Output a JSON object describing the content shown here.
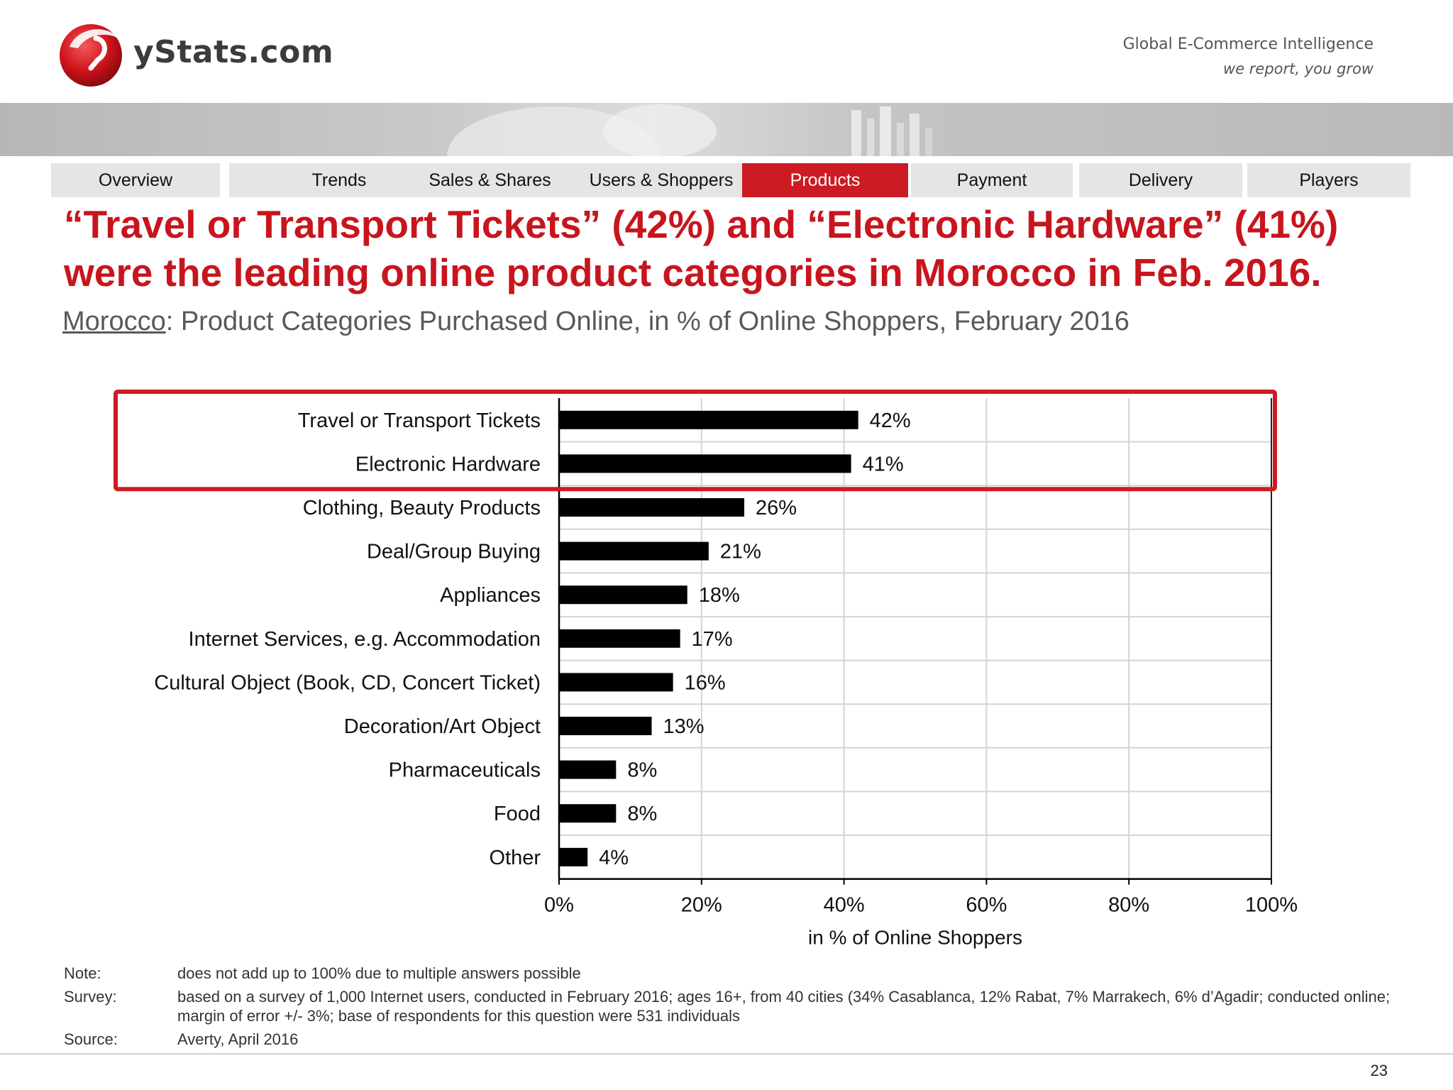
{
  "brand": {
    "logo_text": "yStats.com",
    "tagline_line1": "Global E-Commerce Intelligence",
    "tagline_line2": "we report, you grow",
    "accent_color": "#cc1b22"
  },
  "nav": {
    "tabs": [
      {
        "label": "Overview",
        "active": false
      },
      {
        "label": "Trends",
        "active": false
      },
      {
        "label": "Sales & Shares",
        "active": false
      },
      {
        "label": "Users & Shoppers",
        "active": false
      },
      {
        "label": "Products",
        "active": true
      },
      {
        "label": "Payment",
        "active": false
      },
      {
        "label": "Delivery",
        "active": false
      },
      {
        "label": "Players",
        "active": false
      }
    ]
  },
  "headline": "“Travel or Transport Tickets” (42%) and “Electronic Hardware” (41%) were the leading online product categories in Morocco in Feb. 2016.",
  "subtitle": {
    "country": "Morocco",
    "rest": ": Product Categories Purchased Online, in % of Online Shoppers, February 2016"
  },
  "chart_data": {
    "type": "bar",
    "orientation": "horizontal",
    "categories": [
      "Travel or Transport Tickets",
      "Electronic Hardware",
      "Clothing, Beauty Products",
      "Deal/Group Buying",
      "Appliances",
      "Internet Services, e.g. Accommodation",
      "Cultural Object (Book, CD, Concert Ticket)",
      "Decoration/Art Object",
      "Pharmaceuticals",
      "Food",
      "Other"
    ],
    "values": [
      42,
      41,
      26,
      21,
      18,
      17,
      16,
      13,
      8,
      8,
      4
    ],
    "value_labels": [
      "42%",
      "41%",
      "26%",
      "21%",
      "18%",
      "17%",
      "16%",
      "13%",
      "8%",
      "8%",
      "4%"
    ],
    "xlim": [
      0,
      100
    ],
    "x_ticks": [
      "0%",
      "20%",
      "40%",
      "60%",
      "80%",
      "100%"
    ],
    "xlabel": "in % of Online Shoppers",
    "grid": true,
    "bar_color": "#000000",
    "highlight": {
      "categories": [
        "Travel or Transport Tickets",
        "Electronic Hardware"
      ],
      "color": "#cc1b22"
    }
  },
  "notes": [
    {
      "key": "Note:",
      "text": "does not add up to 100% due to multiple answers possible"
    },
    {
      "key": "Survey:",
      "text": "based on a survey of 1,000 Internet users, conducted in February 2016; ages 16+, from 40 cities (34% Casablanca, 12% Rabat, 7% Marrakech, 6% d’Agadir; conducted online; margin of error +/- 3%; base of respondents for this question were 531 individuals"
    },
    {
      "key": "Source:",
      "text": "Averty, April 2016"
    }
  ],
  "page_number": "23"
}
